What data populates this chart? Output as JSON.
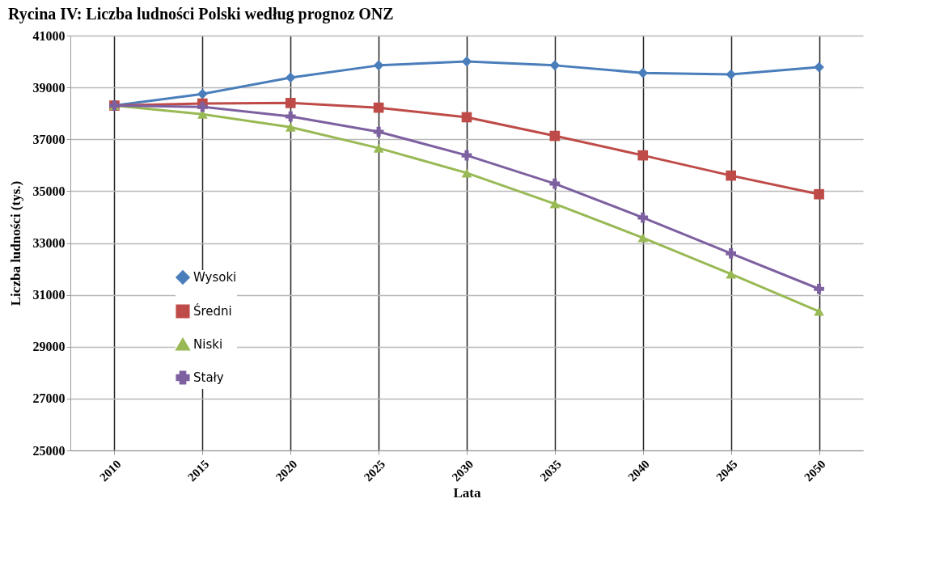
{
  "chart_data": {
    "type": "line",
    "title": "Rycina IV: Liczba ludności Polski według prognoz ONZ",
    "xlabel": "Lata",
    "ylabel": "Liczba ludności (tys.)",
    "categories": [
      "2010",
      "2015",
      "2020",
      "2025",
      "2030",
      "2035",
      "2040",
      "2045",
      "2050"
    ],
    "series": [
      {
        "name": "Wysoki",
        "color": "#4a7ebb",
        "marker": "diamond",
        "values": [
          38300,
          38750,
          39380,
          39850,
          40000,
          39850,
          39560,
          39500,
          39780
        ]
      },
      {
        "name": "Średni",
        "color": "#be4b48",
        "marker": "square",
        "values": [
          38300,
          38380,
          38400,
          38220,
          37850,
          37130,
          36380,
          35600,
          34880
        ]
      },
      {
        "name": "Niski",
        "color": "#98b954",
        "marker": "triangle",
        "values": [
          38300,
          37970,
          37470,
          36660,
          35700,
          34510,
          33200,
          31800,
          30360
        ]
      },
      {
        "name": "Stały",
        "color": "#7d60a0",
        "marker": "cross",
        "values": [
          38300,
          38250,
          37880,
          37290,
          36380,
          35290,
          33980,
          32600,
          31230
        ]
      }
    ],
    "ylim": [
      25000,
      41000
    ],
    "yticks": [
      25000,
      27000,
      29000,
      31000,
      33000,
      35000,
      37000,
      39000,
      41000
    ],
    "grid": true,
    "legend": "left"
  }
}
